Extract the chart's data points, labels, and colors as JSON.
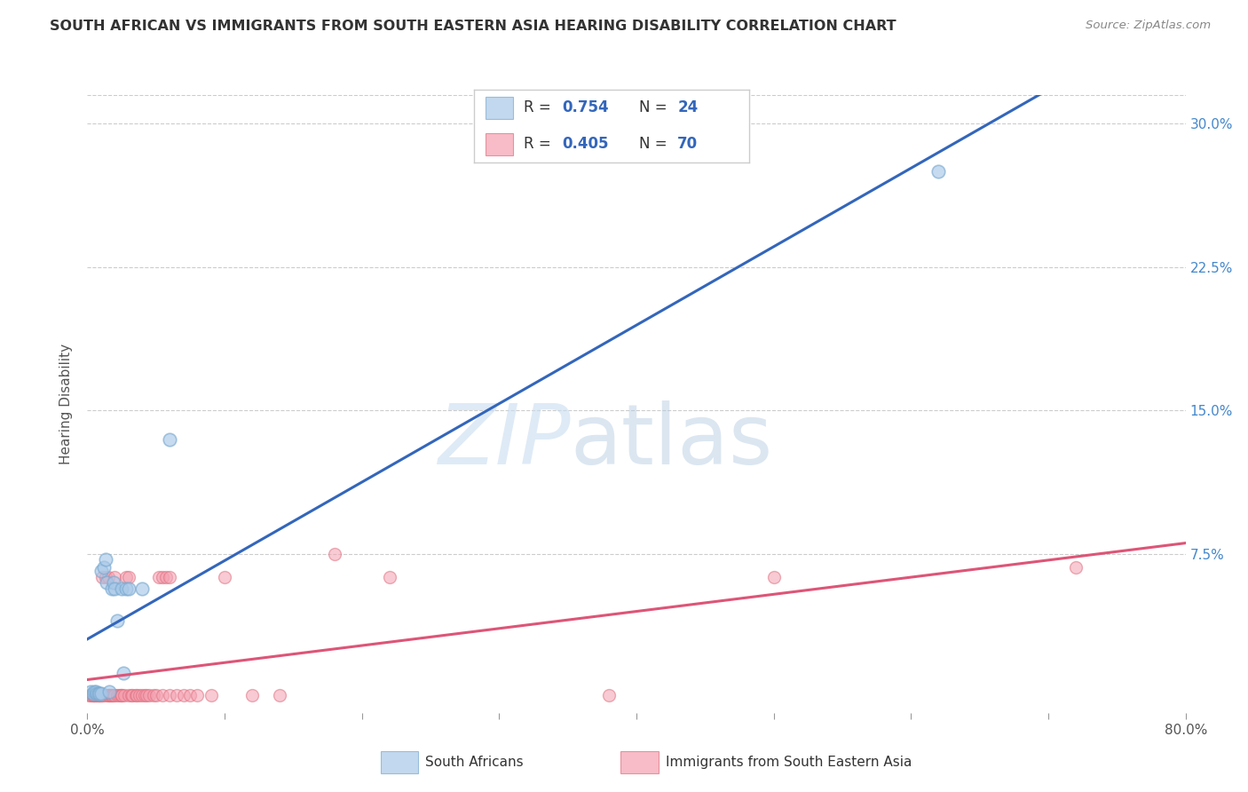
{
  "title": "SOUTH AFRICAN VS IMMIGRANTS FROM SOUTH EASTERN ASIA HEARING DISABILITY CORRELATION CHART",
  "source": "Source: ZipAtlas.com",
  "ylabel": "Hearing Disability",
  "ytick_labels": [
    "",
    "7.5%",
    "15.0%",
    "22.5%",
    "30.0%"
  ],
  "ytick_values": [
    0.0,
    0.075,
    0.15,
    0.225,
    0.3
  ],
  "xlim": [
    0.0,
    0.8
  ],
  "ylim": [
    -0.008,
    0.315
  ],
  "legend_label1": "South Africans",
  "legend_label2": "Immigrants from South Eastern Asia",
  "legend_R1": "0.754",
  "legend_N1": "24",
  "legend_R2": "0.405",
  "legend_N2": "70",
  "blue_fill_color": "#A8C8E8",
  "blue_edge_color": "#7AAAD0",
  "blue_line_color": "#3366BB",
  "pink_fill_color": "#F4A0B0",
  "pink_edge_color": "#E07080",
  "pink_line_color": "#DD5577",
  "watermark_ZIP": "ZIP",
  "watermark_atlas": "atlas",
  "grid_color": "#CCCCCC",
  "title_color": "#333333",
  "source_color": "#888888",
  "ylabel_color": "#555555",
  "ytick_color": "#4488CC",
  "xtick_color": "#555555",
  "blue_scatter_x": [
    0.002,
    0.004,
    0.005,
    0.006,
    0.007,
    0.008,
    0.009,
    0.01,
    0.01,
    0.012,
    0.013,
    0.014,
    0.016,
    0.018,
    0.019,
    0.02,
    0.022,
    0.025,
    0.026,
    0.028,
    0.03,
    0.04,
    0.06,
    0.62
  ],
  "blue_scatter_y": [
    0.003,
    0.002,
    0.003,
    0.003,
    0.002,
    0.002,
    0.002,
    0.002,
    0.066,
    0.068,
    0.072,
    0.06,
    0.003,
    0.057,
    0.06,
    0.057,
    0.04,
    0.057,
    0.013,
    0.057,
    0.057,
    0.057,
    0.135,
    0.275
  ],
  "pink_scatter_x": [
    0.001,
    0.002,
    0.003,
    0.004,
    0.004,
    0.005,
    0.005,
    0.006,
    0.006,
    0.007,
    0.008,
    0.008,
    0.009,
    0.009,
    0.01,
    0.01,
    0.011,
    0.011,
    0.012,
    0.013,
    0.014,
    0.015,
    0.015,
    0.016,
    0.016,
    0.017,
    0.018,
    0.018,
    0.019,
    0.02,
    0.02,
    0.022,
    0.023,
    0.024,
    0.025,
    0.025,
    0.027,
    0.028,
    0.03,
    0.03,
    0.032,
    0.033,
    0.035,
    0.036,
    0.038,
    0.04,
    0.042,
    0.043,
    0.045,
    0.048,
    0.05,
    0.052,
    0.055,
    0.055,
    0.057,
    0.06,
    0.06,
    0.065,
    0.07,
    0.075,
    0.08,
    0.09,
    0.1,
    0.12,
    0.14,
    0.18,
    0.22,
    0.38,
    0.5,
    0.72
  ],
  "pink_scatter_y": [
    0.001,
    0.001,
    0.001,
    0.001,
    0.001,
    0.001,
    0.001,
    0.001,
    0.001,
    0.001,
    0.001,
    0.001,
    0.001,
    0.001,
    0.001,
    0.001,
    0.001,
    0.063,
    0.001,
    0.063,
    0.001,
    0.001,
    0.063,
    0.001,
    0.001,
    0.001,
    0.001,
    0.001,
    0.001,
    0.001,
    0.063,
    0.001,
    0.001,
    0.001,
    0.001,
    0.001,
    0.001,
    0.063,
    0.001,
    0.063,
    0.001,
    0.001,
    0.001,
    0.001,
    0.001,
    0.001,
    0.001,
    0.001,
    0.001,
    0.001,
    0.001,
    0.063,
    0.001,
    0.063,
    0.063,
    0.001,
    0.063,
    0.001,
    0.001,
    0.001,
    0.001,
    0.001,
    0.063,
    0.001,
    0.001,
    0.075,
    0.063,
    0.001,
    0.063,
    0.068
  ]
}
